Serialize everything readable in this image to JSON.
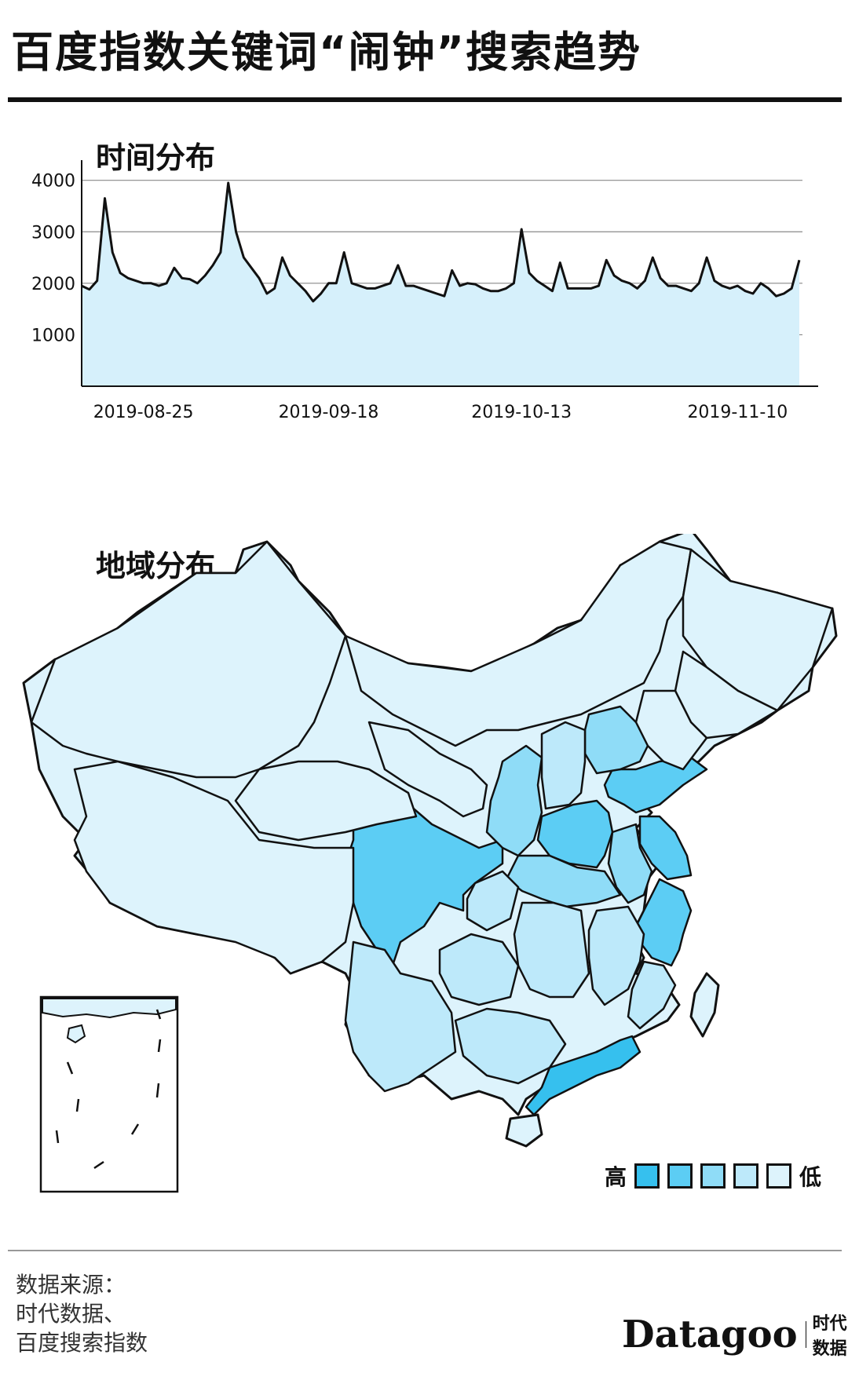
{
  "title": "百度指数关键词“闹钟”搜索趋势",
  "sections": {
    "time": "时间分布",
    "region": "地域分布"
  },
  "legend": {
    "high": "高",
    "low": "低",
    "colors": [
      "#36c0ee",
      "#5ccdf4",
      "#8fdcf7",
      "#bde9fa",
      "#ddf3fc"
    ]
  },
  "source": {
    "line1": "数据来源：",
    "line2": "时代数据、",
    "line3": "百度搜索指数"
  },
  "brand": {
    "name": "Datagoo",
    "cn": "时代数据"
  },
  "chart_data": {
    "type": "area",
    "y_ticks": [
      "4000",
      "3000",
      "2000",
      "1000"
    ],
    "y_tick_values": [
      4000,
      3000,
      2000,
      1000
    ],
    "ylim": [
      0,
      4300
    ],
    "x_tick_labels": [
      "2019-08-25",
      "2019-09-18",
      "2019-10-13",
      "2019-11-10"
    ],
    "grid": true,
    "fill_color": "#d6f0fb",
    "line_color": "#111111",
    "x": [
      "2019-08-17",
      "2019-08-18",
      "2019-08-19",
      "2019-08-20",
      "2019-08-21",
      "2019-08-22",
      "2019-08-23",
      "2019-08-24",
      "2019-08-25",
      "2019-08-26",
      "2019-08-27",
      "2019-08-28",
      "2019-08-29",
      "2019-08-30",
      "2019-08-31",
      "2019-09-01",
      "2019-09-02",
      "2019-09-03",
      "2019-09-04",
      "2019-09-05",
      "2019-09-06",
      "2019-09-07",
      "2019-09-08",
      "2019-09-09",
      "2019-09-10",
      "2019-09-11",
      "2019-09-12",
      "2019-09-13",
      "2019-09-14",
      "2019-09-15",
      "2019-09-16",
      "2019-09-17",
      "2019-09-18",
      "2019-09-19",
      "2019-09-20",
      "2019-09-21",
      "2019-09-22",
      "2019-09-23",
      "2019-09-24",
      "2019-09-25",
      "2019-09-26",
      "2019-09-27",
      "2019-09-28",
      "2019-09-29",
      "2019-09-30",
      "2019-10-01",
      "2019-10-02",
      "2019-10-03",
      "2019-10-04",
      "2019-10-05",
      "2019-10-06",
      "2019-10-07",
      "2019-10-08",
      "2019-10-09",
      "2019-10-10",
      "2019-10-11",
      "2019-10-12",
      "2019-10-13",
      "2019-10-14",
      "2019-10-15",
      "2019-10-16",
      "2019-10-17",
      "2019-10-18",
      "2019-10-19",
      "2019-10-20",
      "2019-10-21",
      "2019-10-22",
      "2019-10-23",
      "2019-10-24",
      "2019-10-25",
      "2019-10-26",
      "2019-10-27",
      "2019-10-28",
      "2019-10-29",
      "2019-10-30",
      "2019-10-31",
      "2019-11-01",
      "2019-11-02",
      "2019-11-03",
      "2019-11-04",
      "2019-11-05",
      "2019-11-06",
      "2019-11-07",
      "2019-11-08",
      "2019-11-09",
      "2019-11-10",
      "2019-11-11",
      "2019-11-12",
      "2019-11-13",
      "2019-11-14",
      "2019-11-15",
      "2019-11-16",
      "2019-11-17",
      "2019-11-18"
    ],
    "y": [
      1950,
      1880,
      2050,
      3650,
      2600,
      2200,
      2100,
      2050,
      2000,
      2000,
      1950,
      2000,
      2300,
      2100,
      2080,
      2000,
      2150,
      2350,
      2600,
      3950,
      3000,
      2500,
      2300,
      2100,
      1800,
      1900,
      2500,
      2150,
      2000,
      1850,
      1650,
      1800,
      2000,
      2000,
      2600,
      2000,
      1950,
      1900,
      1900,
      1950,
      2000,
      2350,
      1950,
      1950,
      1900,
      1850,
      1800,
      1750,
      2250,
      1950,
      2000,
      1980,
      1900,
      1850,
      1850,
      1900,
      2000,
      3050,
      2200,
      2050,
      1950,
      1850,
      2400,
      1900,
      1900,
      1900,
      1900,
      1950,
      2450,
      2150,
      2050,
      2000,
      1900,
      2050,
      2500,
      2100,
      1950,
      1950,
      1900,
      1850,
      2000,
      2500,
      2050,
      1950,
      1900,
      1950,
      1850,
      1800,
      2000,
      1900,
      1750,
      1800,
      1900,
      2450
    ]
  }
}
